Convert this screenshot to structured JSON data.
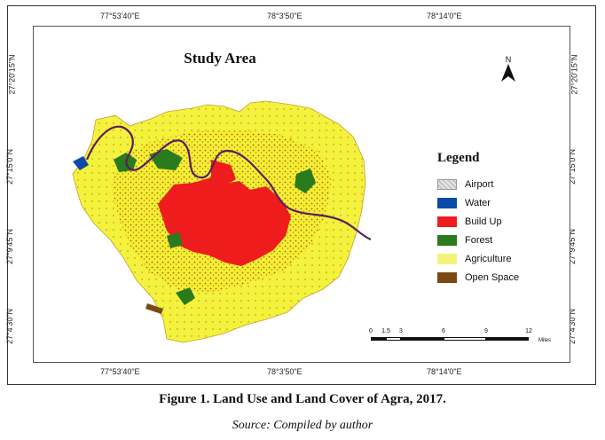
{
  "map": {
    "title": "Study Area",
    "north_label": "N",
    "coords_top": [
      "77°53'40\"E",
      "78°3'50\"E",
      "78°14'0\"E"
    ],
    "coords_bottom": [
      "77°53'40\"E",
      "78°3'50\"E",
      "78°14'0\"E"
    ],
    "coords_left": [
      "27°20'15\"N",
      "27°15'0\"N",
      "27°9'45\"N",
      "27°4'30\"N"
    ],
    "coords_right": [
      "27°20'15\"N",
      "27°15'0\"N",
      "27°9'45\"N",
      "27°4'30\"N"
    ],
    "legend": {
      "title": "Legend",
      "items": [
        {
          "label": "Airport",
          "color": "#d9d9d9"
        },
        {
          "label": "Water",
          "color": "#0b4aa8"
        },
        {
          "label": "Build Up",
          "color": "#ee1c1c"
        },
        {
          "label": "Forest",
          "color": "#2a7a1e"
        },
        {
          "label": "Agriculture",
          "color": "#f3f37a"
        },
        {
          "label": "Open Space",
          "color": "#7a4a12"
        }
      ]
    },
    "scale": {
      "labels": [
        "0",
        "1.5",
        "3",
        "6",
        "9",
        "12"
      ],
      "unit": "Miles"
    },
    "region_colors": {
      "agriculture": "#f2f032",
      "buildup_dense": "#ee1c1c",
      "buildup_scatter": "#b5561c",
      "forest": "#2a7a1e",
      "river": "#5a1f5e",
      "water": "#0b4aa8",
      "open_space": "#7a4a12"
    }
  },
  "caption": "Figure 1. Land Use and Land Cover of Agra, 2017.",
  "source": "Source: Compiled by author"
}
